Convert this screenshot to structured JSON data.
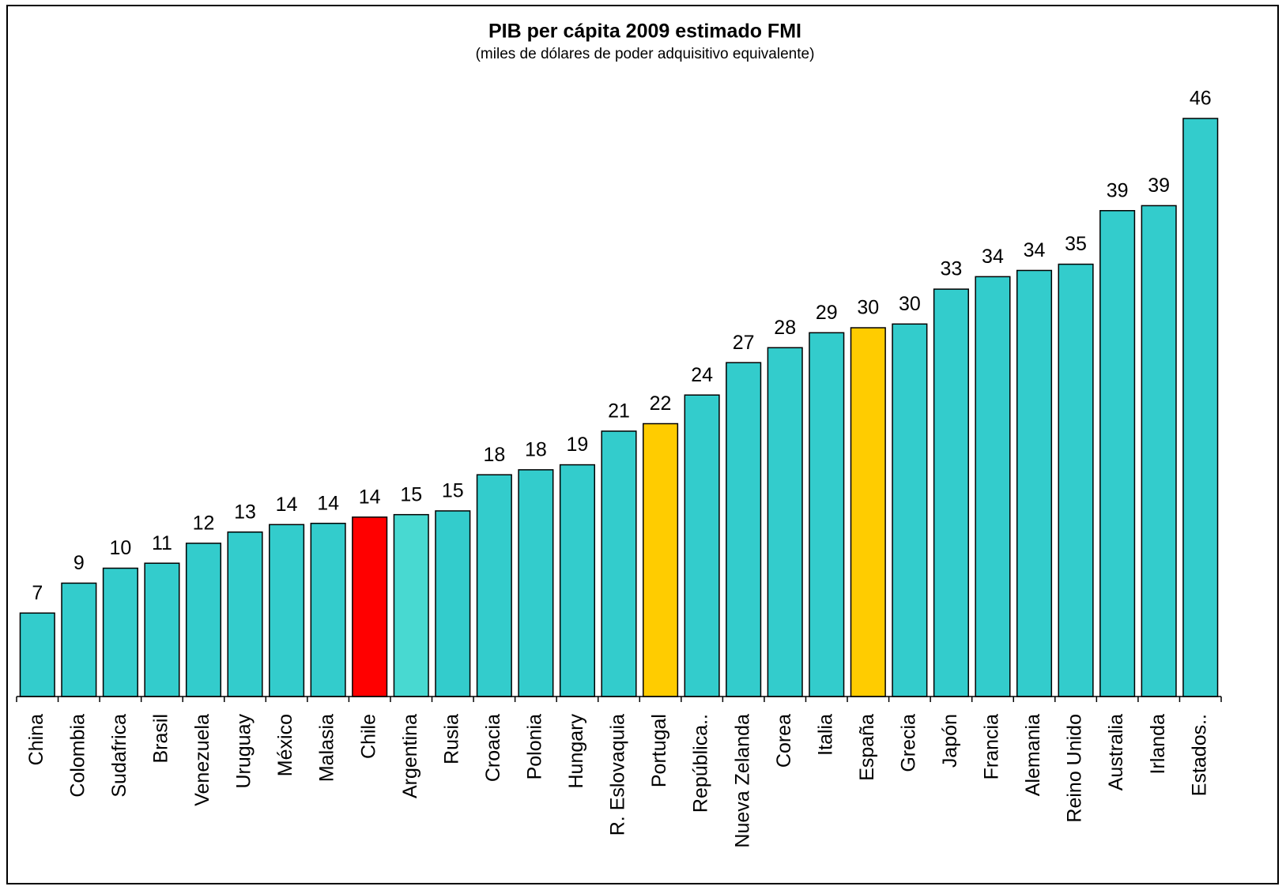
{
  "chart_data": {
    "type": "bar",
    "title": "PIB per cápita 2009 estimado FMI",
    "subtitle": "(miles de dólares de poder adquisitivo equivalente)",
    "categories": [
      "China",
      "Colombia",
      "Sudafrica",
      "Brasil",
      "Venezuela",
      "Uruguay",
      "México",
      "Malasia",
      "Chile",
      "Argentina",
      "Rusia",
      "Croacia",
      "Polonia",
      "Hungary",
      "R. Eslovaquia",
      "Portugal",
      "República..",
      "Nueva Zelanda",
      "Corea",
      "Italia",
      "España",
      "Grecia",
      "Japón",
      "Francia",
      "Alemania",
      "Reino Unido",
      "Australia",
      "Irlanda",
      "Estados.."
    ],
    "values": [
      6.7,
      9.1,
      10.3,
      10.7,
      12.3,
      13.2,
      13.8,
      13.9,
      14.4,
      14.6,
      14.9,
      17.8,
      18.2,
      18.6,
      21.3,
      21.9,
      24.2,
      26.8,
      28.0,
      29.2,
      29.6,
      29.9,
      32.7,
      33.7,
      34.2,
      34.7,
      39.0,
      39.4,
      46.4
    ],
    "value_labels": [
      "7",
      "9",
      "10",
      "11",
      "12",
      "13",
      "14",
      "14",
      "14",
      "15",
      "15",
      "18",
      "18",
      "19",
      "21",
      "22",
      "24",
      "27",
      "28",
      "29",
      "30",
      "30",
      "33",
      "34",
      "34",
      "35",
      "39",
      "39",
      "46"
    ],
    "colors": [
      "#33cccc",
      "#33cccc",
      "#33cccc",
      "#33cccc",
      "#33cccc",
      "#33cccc",
      "#33cccc",
      "#33cccc",
      "#ff0000",
      "#48d9d1",
      "#33cccc",
      "#33cccc",
      "#33cccc",
      "#33cccc",
      "#33cccc",
      "#ffcc00",
      "#33cccc",
      "#33cccc",
      "#33cccc",
      "#33cccc",
      "#ffcc00",
      "#33cccc",
      "#33cccc",
      "#33cccc",
      "#33cccc",
      "#33cccc",
      "#33cccc",
      "#33cccc",
      "#33cccc"
    ]
  }
}
